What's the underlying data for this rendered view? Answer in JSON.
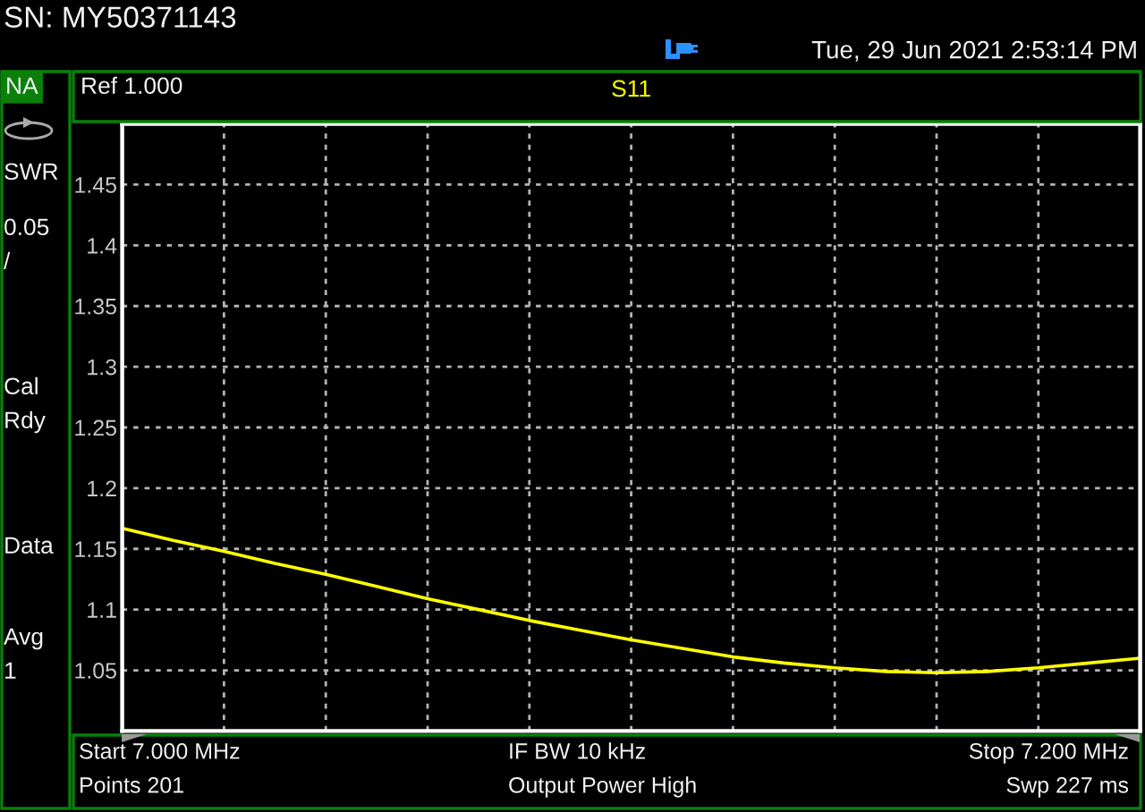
{
  "chart_data": {
    "type": "line",
    "title": "S11",
    "ylabel": "SWR",
    "categories": [
      null,
      null,
      null,
      null,
      null,
      null,
      null,
      null,
      null,
      null,
      null,
      null,
      null,
      null,
      null,
      null,
      null,
      null,
      null,
      null,
      null
    ],
    "series": [
      {
        "color": "#ffff00",
        "values": [
          1.167,
          1.157,
          1.148,
          1.138,
          1.129,
          1.119,
          1.109,
          1.1,
          1.091,
          1.083,
          1.075,
          1.068,
          1.061,
          1.056,
          1.052,
          1.049,
          1.048,
          1.049,
          1.052,
          1.056,
          1.06
        ]
      }
    ],
    "ylim": [
      1.0,
      1.5
    ],
    "yticks": [
      1.05,
      1.1,
      1.15,
      1.2,
      1.25,
      1.3,
      1.35,
      1.4,
      1.45
    ],
    "grid": true,
    "tick_labels": "y",
    "annotations": [
      "SN: MY50371143",
      "Tue, 29 Jun 2021 2:53:14 PM",
      "NA",
      "0.05",
      "/",
      "Cal",
      "Rdy",
      "Data",
      "Avg",
      "1",
      "Ref 1.000",
      "Start 7.000 MHz",
      "IF BW 10 kHz",
      "Stop 7.200 MHz",
      "Points 201",
      "Output Power High",
      "Swp 227 ms"
    ]
  }
}
